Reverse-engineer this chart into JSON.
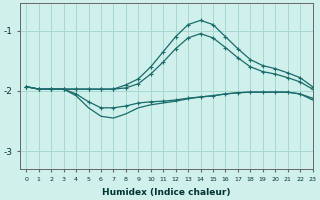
{
  "xlabel": "Humidex (Indice chaleur)",
  "bg_color": "#cff0eb",
  "grid_color": "#a8d8d0",
  "line_color": "#1a6b6b",
  "xlim": [
    -0.5,
    23
  ],
  "ylim": [
    -3.3,
    -0.55
  ],
  "yticks": [
    -3,
    -2,
    -1
  ],
  "xticks": [
    0,
    1,
    2,
    3,
    4,
    5,
    6,
    7,
    8,
    9,
    10,
    11,
    12,
    13,
    14,
    15,
    16,
    17,
    18,
    19,
    20,
    21,
    22,
    23
  ],
  "line_up1_x": [
    0,
    1,
    2,
    3,
    4,
    5,
    6,
    7,
    8,
    9,
    10,
    11,
    12,
    13,
    14,
    15,
    16,
    17,
    18,
    19,
    20,
    21,
    22,
    23
  ],
  "line_up1_y": [
    -1.93,
    -1.97,
    -1.97,
    -1.97,
    -1.97,
    -1.97,
    -1.97,
    -1.97,
    -1.95,
    -1.88,
    -1.72,
    -1.52,
    -1.3,
    -1.12,
    -1.05,
    -1.12,
    -1.28,
    -1.45,
    -1.6,
    -1.68,
    -1.72,
    -1.78,
    -1.85,
    -1.97
  ],
  "line_up2_x": [
    0,
    1,
    2,
    3,
    4,
    5,
    6,
    7,
    8,
    9,
    10,
    11,
    12,
    13,
    14,
    15,
    16,
    17,
    18,
    19,
    20,
    21,
    22,
    23
  ],
  "line_up2_y": [
    -1.93,
    -1.97,
    -1.97,
    -1.97,
    -1.97,
    -1.97,
    -1.97,
    -1.97,
    -1.9,
    -1.8,
    -1.6,
    -1.35,
    -1.1,
    -0.9,
    -0.83,
    -0.9,
    -1.1,
    -1.3,
    -1.48,
    -1.58,
    -1.63,
    -1.7,
    -1.78,
    -1.93
  ],
  "line_down1_x": [
    0,
    1,
    2,
    3,
    4,
    5,
    6,
    7,
    8,
    9,
    10,
    11,
    12,
    13,
    14,
    15,
    16,
    17,
    18,
    19,
    20,
    21,
    22,
    23
  ],
  "line_down1_y": [
    -1.93,
    -1.97,
    -1.97,
    -1.97,
    -2.05,
    -2.18,
    -2.28,
    -2.28,
    -2.25,
    -2.2,
    -2.18,
    -2.17,
    -2.15,
    -2.12,
    -2.1,
    -2.08,
    -2.05,
    -2.03,
    -2.02,
    -2.02,
    -2.02,
    -2.02,
    -2.05,
    -2.12
  ],
  "line_down2_x": [
    0,
    1,
    2,
    3,
    4,
    5,
    6,
    7,
    8,
    9,
    10,
    11,
    12,
    13,
    14,
    15,
    16,
    17,
    18,
    19,
    20,
    21,
    22,
    23
  ],
  "line_down2_y": [
    -1.93,
    -1.97,
    -1.97,
    -1.97,
    -2.08,
    -2.28,
    -2.42,
    -2.45,
    -2.38,
    -2.28,
    -2.23,
    -2.2,
    -2.17,
    -2.13,
    -2.1,
    -2.08,
    -2.05,
    -2.03,
    -2.02,
    -2.02,
    -2.02,
    -2.02,
    -2.05,
    -2.15
  ]
}
